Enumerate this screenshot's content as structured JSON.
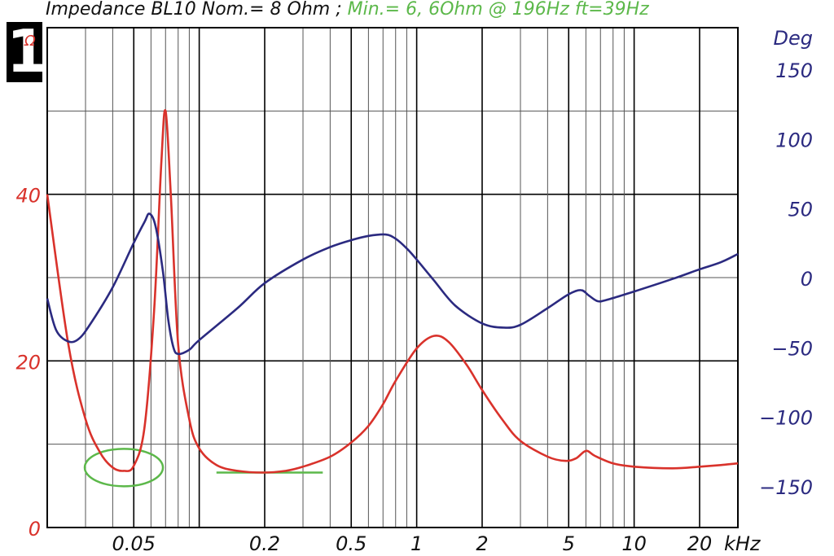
{
  "title": {
    "main": "Impedance BL10 Nom.= 8 Ohm ;",
    "green": "Min.= 6, 6Ohm @ 196Hz ft=39Hz"
  },
  "badge": "1",
  "colors": {
    "impedance": "#d9322b",
    "phase": "#2b2a80",
    "marker": "#5cb84a",
    "grid_major": "#000000",
    "grid_minor": "#555555"
  },
  "chart_data": {
    "type": "line",
    "x_scale": "log",
    "xlim": [
      0.02,
      30
    ],
    "x_ticks": [
      {
        "v": 0.05,
        "label": "0.05"
      },
      {
        "v": 0.2,
        "label": "0.2"
      },
      {
        "v": 0.5,
        "label": "0.5"
      },
      {
        "v": 1,
        "label": "1"
      },
      {
        "v": 2,
        "label": "2"
      },
      {
        "v": 5,
        "label": "5"
      },
      {
        "v": 10,
        "label": "10"
      },
      {
        "v": 20,
        "label": "20"
      }
    ],
    "x_unit": "kHz",
    "y_left": {
      "label": "Ω",
      "range": [
        0,
        60
      ],
      "ticks": [
        {
          "v": 0,
          "label": "0"
        },
        {
          "v": 20,
          "label": "20"
        },
        {
          "v": 40,
          "label": "40"
        }
      ]
    },
    "y_right": {
      "label": "Deg",
      "range": [
        -180,
        180
      ],
      "ticks": [
        {
          "v": 150,
          "label": "150"
        },
        {
          "v": 100,
          "label": "100"
        },
        {
          "v": 50,
          "label": "50"
        },
        {
          "v": 0,
          "label": "0"
        },
        {
          "v": -50,
          "label": "−50"
        },
        {
          "v": -100,
          "label": "−100"
        },
        {
          "v": -150,
          "label": "−150"
        }
      ]
    },
    "series": [
      {
        "key": "impedance",
        "axis": "left",
        "points": [
          [
            0.02,
            40
          ],
          [
            0.025,
            22
          ],
          [
            0.03,
            13
          ],
          [
            0.035,
            9
          ],
          [
            0.04,
            7.2
          ],
          [
            0.045,
            6.8
          ],
          [
            0.05,
            7.4
          ],
          [
            0.056,
            12
          ],
          [
            0.062,
            26
          ],
          [
            0.067,
            44
          ],
          [
            0.07,
            50
          ],
          [
            0.074,
            40
          ],
          [
            0.08,
            22
          ],
          [
            0.09,
            13
          ],
          [
            0.1,
            9.5
          ],
          [
            0.12,
            7.5
          ],
          [
            0.15,
            6.8
          ],
          [
            0.196,
            6.6
          ],
          [
            0.25,
            6.8
          ],
          [
            0.3,
            7.3
          ],
          [
            0.4,
            8.5
          ],
          [
            0.5,
            10.2
          ],
          [
            0.6,
            12.2
          ],
          [
            0.7,
            14.8
          ],
          [
            0.8,
            17.6
          ],
          [
            1,
            21.5
          ],
          [
            1.2,
            23
          ],
          [
            1.4,
            22.3
          ],
          [
            1.7,
            19.5
          ],
          [
            2,
            16.5
          ],
          [
            2.5,
            12.8
          ],
          [
            3,
            10.4
          ],
          [
            4,
            8.5
          ],
          [
            4.8,
            8
          ],
          [
            5.4,
            8.3
          ],
          [
            6,
            9.2
          ],
          [
            6.6,
            8.6
          ],
          [
            8,
            7.7
          ],
          [
            10,
            7.3
          ],
          [
            15,
            7.1
          ],
          [
            20,
            7.3
          ],
          [
            25,
            7.5
          ],
          [
            30,
            7.7
          ]
        ]
      },
      {
        "key": "phase",
        "axis": "right",
        "points": [
          [
            0.02,
            -15
          ],
          [
            0.022,
            -38
          ],
          [
            0.025,
            -46
          ],
          [
            0.028,
            -44
          ],
          [
            0.032,
            -32
          ],
          [
            0.04,
            -7
          ],
          [
            0.05,
            25
          ],
          [
            0.056,
            40
          ],
          [
            0.059,
            46
          ],
          [
            0.063,
            37
          ],
          [
            0.068,
            5
          ],
          [
            0.072,
            -30
          ],
          [
            0.076,
            -50
          ],
          [
            0.08,
            -55
          ],
          [
            0.09,
            -52
          ],
          [
            0.1,
            -45
          ],
          [
            0.15,
            -22
          ],
          [
            0.2,
            -4
          ],
          [
            0.3,
            13
          ],
          [
            0.4,
            22
          ],
          [
            0.5,
            27
          ],
          [
            0.6,
            30
          ],
          [
            0.72,
            31
          ],
          [
            0.8,
            28
          ],
          [
            0.9,
            21
          ],
          [
            1,
            13
          ],
          [
            1.2,
            -2
          ],
          [
            1.5,
            -20
          ],
          [
            2,
            -33
          ],
          [
            2.5,
            -36
          ],
          [
            3,
            -34
          ],
          [
            4,
            -22
          ],
          [
            5,
            -12
          ],
          [
            5.7,
            -9
          ],
          [
            6.2,
            -13
          ],
          [
            6.8,
            -17
          ],
          [
            7.5,
            -16
          ],
          [
            10,
            -10
          ],
          [
            15,
            -1
          ],
          [
            20,
            6
          ],
          [
            25,
            11
          ],
          [
            30,
            17
          ]
        ]
      }
    ]
  }
}
